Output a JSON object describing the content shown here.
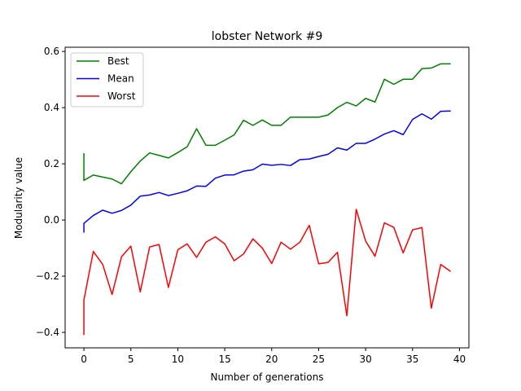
{
  "chart_data": {
    "type": "line",
    "title": "lobster Network #9",
    "xlabel": "Number of generations",
    "ylabel": "Modularity value",
    "xlim": [
      -2,
      41
    ],
    "ylim": [
      -0.455,
      0.615
    ],
    "xticks": [
      0,
      5,
      10,
      15,
      20,
      25,
      30,
      35,
      40
    ],
    "yticks": [
      -0.4,
      -0.2,
      0.0,
      0.2,
      0.4,
      0.6
    ],
    "xtick_labels": [
      "0",
      "5",
      "10",
      "15",
      "20",
      "25",
      "30",
      "35",
      "40"
    ],
    "ytick_labels": [
      "−0.4",
      "−0.2",
      "0.0",
      "0.2",
      "0.4",
      "0.6"
    ],
    "legend": "top-left",
    "grid": false,
    "series": [
      {
        "name": "Best",
        "color": "#008000",
        "x": [
          0,
          0,
          0,
          1,
          2,
          3,
          4,
          5,
          6,
          7,
          8,
          9,
          10,
          11,
          12,
          13,
          14,
          15,
          16,
          17,
          18,
          19,
          20,
          21,
          22,
          23,
          24,
          25,
          26,
          27,
          28,
          29,
          30,
          31,
          32,
          33,
          34,
          35,
          36,
          37,
          38,
          39
        ],
        "y": [
          0.236,
          0.141,
          0.141,
          0.16,
          0.153,
          0.146,
          0.129,
          0.172,
          0.21,
          0.239,
          0.23,
          0.221,
          0.24,
          0.261,
          0.325,
          0.266,
          0.266,
          0.284,
          0.303,
          0.355,
          0.337,
          0.356,
          0.337,
          0.337,
          0.366,
          0.366,
          0.366,
          0.366,
          0.374,
          0.4,
          0.419,
          0.406,
          0.433,
          0.42,
          0.501,
          0.483,
          0.501,
          0.501,
          0.539,
          0.541,
          0.556,
          0.556
        ]
      },
      {
        "name": "Mean",
        "color": "#0000ff",
        "x": [
          0,
          0,
          1,
          2,
          3,
          4,
          5,
          6,
          7,
          8,
          9,
          10,
          11,
          12,
          13,
          14,
          15,
          16,
          17,
          18,
          19,
          20,
          21,
          22,
          23,
          24,
          25,
          26,
          27,
          28,
          29,
          30,
          31,
          32,
          33,
          34,
          35,
          36,
          37,
          38,
          39
        ],
        "y": [
          -0.043,
          -0.012,
          0.016,
          0.035,
          0.024,
          0.034,
          0.053,
          0.085,
          0.089,
          0.098,
          0.087,
          0.095,
          0.104,
          0.121,
          0.12,
          0.149,
          0.16,
          0.161,
          0.174,
          0.179,
          0.199,
          0.195,
          0.198,
          0.194,
          0.215,
          0.217,
          0.226,
          0.234,
          0.257,
          0.249,
          0.273,
          0.273,
          0.288,
          0.306,
          0.318,
          0.304,
          0.358,
          0.378,
          0.359,
          0.387,
          0.388
        ]
      },
      {
        "name": "Worst",
        "color": "#ff0000",
        "x": [
          0,
          0,
          1,
          2,
          3,
          4,
          5,
          6,
          7,
          8,
          9,
          10,
          11,
          12,
          13,
          14,
          15,
          16,
          17,
          18,
          19,
          20,
          21,
          22,
          23,
          24,
          25,
          26,
          27,
          28,
          29,
          30,
          31,
          32,
          33,
          34,
          35,
          36,
          37,
          38,
          39
        ],
        "y": [
          -0.407,
          -0.285,
          -0.112,
          -0.158,
          -0.265,
          -0.131,
          -0.093,
          -0.256,
          -0.096,
          -0.087,
          -0.24,
          -0.106,
          -0.085,
          -0.133,
          -0.079,
          -0.06,
          -0.085,
          -0.145,
          -0.121,
          -0.067,
          -0.1,
          -0.155,
          -0.079,
          -0.104,
          -0.079,
          -0.019,
          -0.156,
          -0.151,
          -0.115,
          -0.341,
          0.038,
          -0.075,
          -0.129,
          -0.01,
          -0.026,
          -0.117,
          -0.035,
          -0.027,
          -0.314,
          -0.158,
          -0.182
        ]
      }
    ]
  }
}
